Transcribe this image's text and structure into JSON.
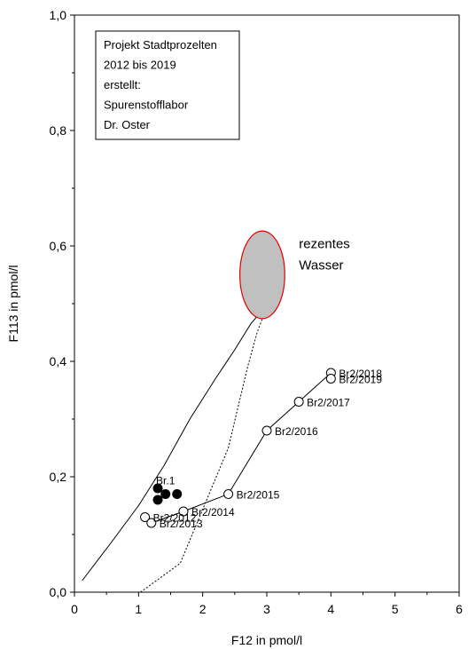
{
  "chart_data": {
    "type": "scatter",
    "xlabel": "F12 in pmol/l",
    "ylabel": "F113 in pmol/l",
    "xlim": [
      0,
      6
    ],
    "ylim": [
      0,
      1.0
    ],
    "x_ticks": [
      0,
      1,
      2,
      3,
      4,
      5,
      6
    ],
    "x_tick_labels": [
      "0",
      "1",
      "2",
      "3",
      "4",
      "5",
      "6"
    ],
    "y_ticks": [
      0,
      0.2,
      0.4,
      0.6,
      0.8,
      1.0
    ],
    "y_tick_labels": [
      "0,0",
      "0,2",
      "0,4",
      "0,6",
      "0,8",
      "1,0"
    ],
    "annotation_lines": [
      "Projekt Stadtprozelten",
      "2012 bis 2019",
      "erstellt:",
      "Spurenstofflabor",
      "Dr. Oster"
    ],
    "ellipse": {
      "cx": 2.93,
      "cy": 0.55,
      "rx": 0.35,
      "ry": 0.076,
      "fill": "#c0c0c0",
      "stroke": "#e00000",
      "label_lines": [
        "rezentes",
        "Wasser"
      ]
    },
    "curves": [
      {
        "style": "solid",
        "points": [
          [
            0.12,
            0.02
          ],
          [
            0.6,
            0.09
          ],
          [
            1.0,
            0.15
          ],
          [
            1.4,
            0.22
          ],
          [
            1.8,
            0.3
          ],
          [
            2.2,
            0.37
          ],
          [
            2.5,
            0.42
          ],
          [
            2.75,
            0.465
          ],
          [
            2.9,
            0.485
          ]
        ]
      },
      {
        "style": "dashed",
        "points": [
          [
            1.03,
            0.0
          ],
          [
            1.65,
            0.05
          ],
          [
            2.4,
            0.25
          ],
          [
            2.7,
            0.39
          ],
          [
            2.85,
            0.45
          ],
          [
            2.95,
            0.48
          ]
        ]
      }
    ],
    "series": [
      {
        "name": "Br.1",
        "marker": "filled",
        "label_pos": [
          1.3,
          0.195
        ],
        "points": [
          [
            1.3,
            0.18
          ],
          [
            1.42,
            0.17
          ],
          [
            1.6,
            0.17
          ],
          [
            1.3,
            0.16
          ]
        ]
      },
      {
        "name": "Br2",
        "marker": "open",
        "connected": true,
        "points": [
          {
            "x": 1.1,
            "y": 0.13,
            "label": "Br2/2012"
          },
          {
            "x": 1.2,
            "y": 0.12,
            "label": "Br2/2013"
          },
          {
            "x": 1.7,
            "y": 0.14,
            "label": "Br2/2014"
          },
          {
            "x": 2.4,
            "y": 0.17,
            "label": "Br2/2015"
          },
          {
            "x": 3.0,
            "y": 0.28,
            "label": "Br2/2016"
          },
          {
            "x": 3.5,
            "y": 0.33,
            "label": "Br2/2017"
          },
          {
            "x": 4.0,
            "y": 0.38,
            "label": "Br2/2018"
          },
          {
            "x": 4.0,
            "y": 0.37,
            "label": "Br2/2019"
          }
        ]
      }
    ]
  }
}
